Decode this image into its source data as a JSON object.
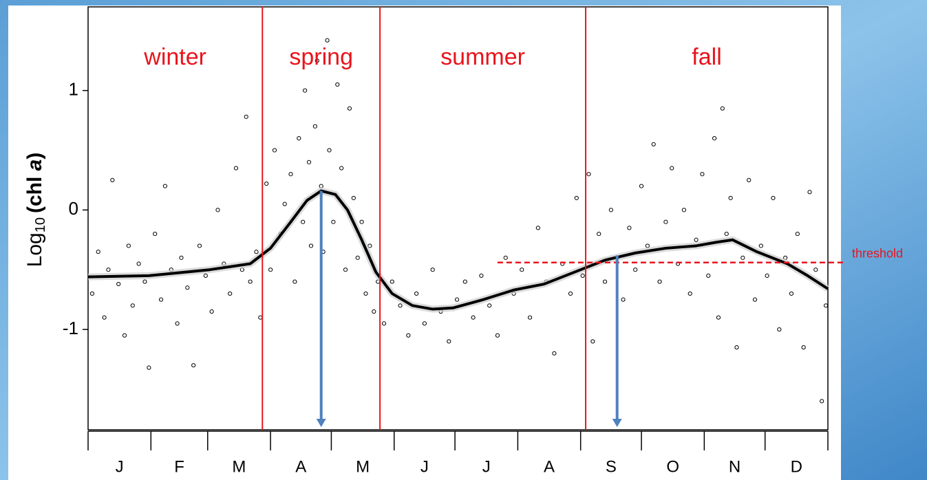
{
  "chart_data": {
    "type": "scatter",
    "ylabel": {
      "base": "Log",
      "sub": "10",
      "pre": "(chl ",
      "italic": "a",
      "post": ")"
    },
    "xlim": [
      0,
      365
    ],
    "ylim": [
      -1.84,
      1.7
    ],
    "yticks": [
      -1,
      0,
      1
    ],
    "xticks": [
      {
        "value": 15.5,
        "label": "J"
      },
      {
        "value": 45,
        "label": "F"
      },
      {
        "value": 74.5,
        "label": "M"
      },
      {
        "value": 105,
        "label": "A"
      },
      {
        "value": 135.5,
        "label": "M"
      },
      {
        "value": 166,
        "label": "J"
      },
      {
        "value": 196.5,
        "label": "J"
      },
      {
        "value": 227.5,
        "label": "A"
      },
      {
        "value": 258,
        "label": "S"
      },
      {
        "value": 288.5,
        "label": "O"
      },
      {
        "value": 319,
        "label": "N"
      },
      {
        "value": 349.5,
        "label": "D"
      }
    ],
    "month_edges": [
      0,
      31,
      59,
      90,
      120,
      151,
      181,
      212,
      243,
      273,
      304,
      334,
      365
    ],
    "seasons": [
      {
        "label": "winter",
        "start": 0
      },
      {
        "label": "spring",
        "start": 86
      },
      {
        "label": "summer",
        "start": 144
      },
      {
        "label": "fall",
        "start": 245.5
      }
    ],
    "season_color": "#e8141c",
    "threshold": {
      "label": "threshold",
      "value": -0.44,
      "start": 202,
      "color": "#e8141c"
    },
    "arrows": [
      {
        "x": 115,
        "from": 0.16
      },
      {
        "x": 261,
        "from": -0.38
      }
    ],
    "arrow_color": "#4f81bd",
    "points": {
      "x": [
        2,
        5,
        8,
        10,
        12,
        15,
        18,
        20,
        22,
        25,
        28,
        30,
        33,
        36,
        38,
        41,
        44,
        46,
        49,
        52,
        55,
        58,
        61,
        64,
        67,
        70,
        73,
        76,
        78,
        80,
        83,
        85,
        88,
        90,
        92,
        95,
        97,
        100,
        102,
        104,
        106,
        107,
        109,
        110,
        112,
        113,
        115,
        116,
        118,
        119,
        121,
        123,
        125,
        127,
        129,
        131,
        133,
        135,
        137,
        139,
        141,
        143,
        146,
        150,
        154,
        158,
        162,
        166,
        170,
        174,
        178,
        182,
        186,
        190,
        194,
        198,
        202,
        206,
        210,
        214,
        218,
        222,
        226,
        230,
        234,
        238,
        241,
        244,
        247,
        249,
        252,
        255,
        258,
        261,
        264,
        267,
        270,
        273,
        276,
        279,
        282,
        285,
        288,
        291,
        294,
        297,
        300,
        303,
        306,
        309,
        311,
        313,
        315,
        317,
        320,
        323,
        326,
        329,
        332,
        335,
        338,
        341,
        344,
        347,
        350,
        353,
        356,
        359,
        362,
        364
      ],
      "y": [
        -0.7,
        -0.35,
        -0.9,
        -0.5,
        0.25,
        -0.62,
        -1.05,
        -0.3,
        -0.8,
        -0.45,
        -0.6,
        -1.32,
        -0.2,
        -0.75,
        0.2,
        -0.5,
        -0.95,
        -0.4,
        -0.65,
        -1.3,
        -0.3,
        -0.55,
        -0.85,
        0.0,
        -0.45,
        -0.7,
        0.35,
        -0.5,
        0.78,
        -0.6,
        -0.35,
        -0.9,
        0.22,
        -0.5,
        0.5,
        -0.2,
        0.05,
        0.3,
        -0.6,
        0.6,
        -0.1,
        1.0,
        0.4,
        -0.3,
        0.7,
        1.25,
        0.2,
        -0.35,
        1.42,
        0.5,
        -0.1,
        1.05,
        0.35,
        -0.5,
        0.85,
        0.1,
        -0.4,
        -0.1,
        -0.7,
        -0.3,
        -0.85,
        -0.6,
        -0.95,
        -0.6,
        -0.8,
        -1.05,
        -0.7,
        -0.95,
        -0.5,
        -0.85,
        -1.1,
        -0.75,
        -0.6,
        -0.9,
        -0.55,
        -0.8,
        -1.05,
        -0.4,
        -0.7,
        -0.5,
        -0.9,
        -0.15,
        -0.6,
        -1.2,
        -0.45,
        -0.7,
        0.1,
        -0.55,
        0.3,
        -1.1,
        -0.2,
        -0.6,
        0.0,
        -0.4,
        -0.75,
        -0.15,
        -0.5,
        0.2,
        -0.3,
        0.55,
        -0.6,
        -0.1,
        0.35,
        -0.45,
        0.0,
        -0.7,
        -0.25,
        0.3,
        -0.55,
        0.6,
        -0.9,
        0.85,
        -0.2,
        0.1,
        -1.15,
        -0.4,
        0.25,
        -0.75,
        -0.3,
        -0.55,
        0.1,
        -1.0,
        -0.4,
        -0.7,
        -0.2,
        -1.15,
        0.15,
        -0.5,
        -1.6,
        -0.8
      ]
    },
    "curve": {
      "x": [
        0,
        30,
        60,
        80,
        90,
        100,
        108,
        115,
        122,
        128,
        135,
        142,
        150,
        160,
        170,
        180,
        195,
        210,
        225,
        240,
        255,
        270,
        285,
        300,
        310,
        318,
        330,
        345,
        355,
        365
      ],
      "y": [
        -0.56,
        -0.55,
        -0.5,
        -0.45,
        -0.32,
        -0.1,
        0.08,
        0.16,
        0.13,
        0.0,
        -0.25,
        -0.52,
        -0.7,
        -0.8,
        -0.83,
        -0.82,
        -0.75,
        -0.67,
        -0.62,
        -0.52,
        -0.42,
        -0.36,
        -0.32,
        -0.3,
        -0.27,
        -0.25,
        -0.35,
        -0.45,
        -0.55,
        -0.66
      ]
    }
  }
}
